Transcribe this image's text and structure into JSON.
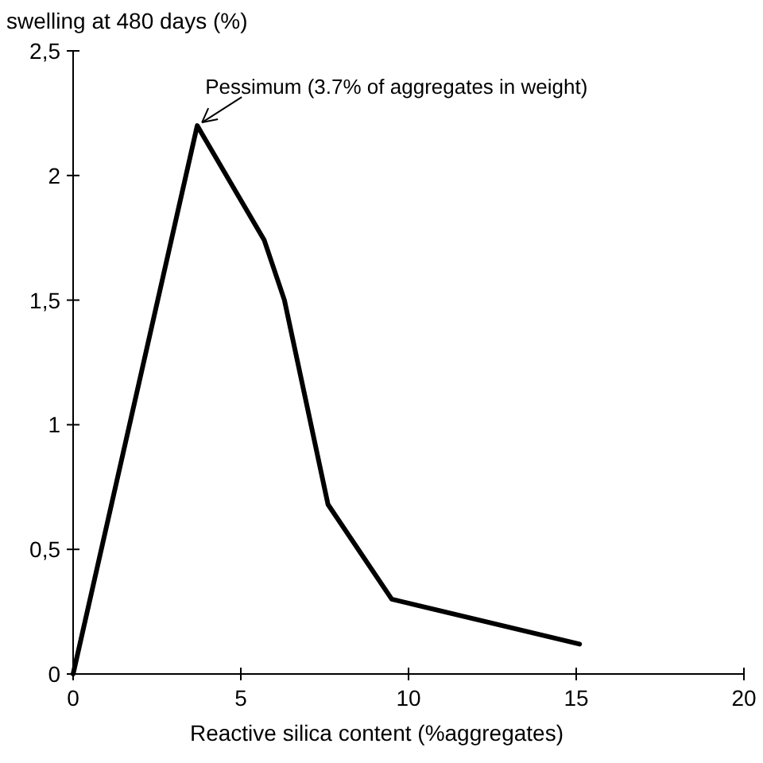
{
  "chart_data": {
    "type": "line",
    "ylabel": "swelling at 480 days (%)",
    "xlabel": "Reactive silica content (%aggregates)",
    "x": [
      0,
      3.7,
      5.7,
      6.3,
      7.6,
      9.5,
      15.1
    ],
    "series": [
      {
        "color": "#000000",
        "values": [
          0,
          2.2,
          1.74,
          1.5,
          0.68,
          0.3,
          0.12
        ]
      }
    ],
    "xlim": [
      0,
      20
    ],
    "xticks": [
      0,
      5,
      10,
      15,
      20
    ],
    "ylim": [
      0,
      2.5
    ],
    "yticks": [
      {
        "value": 0,
        "label": "0"
      },
      {
        "value": 0.5,
        "label": "0,5"
      },
      {
        "value": 1,
        "label": "1"
      },
      {
        "value": 1.5,
        "label": "1,5"
      },
      {
        "value": 2,
        "label": "2"
      },
      {
        "value": 2.5,
        "label": "2,5"
      }
    ],
    "annotations": [
      {
        "text": "Pessimum (3.7% of aggregates in weight)",
        "x": 3.7,
        "y": 2.2
      }
    ],
    "grid": false,
    "marker": "none",
    "line_style": "solid"
  }
}
